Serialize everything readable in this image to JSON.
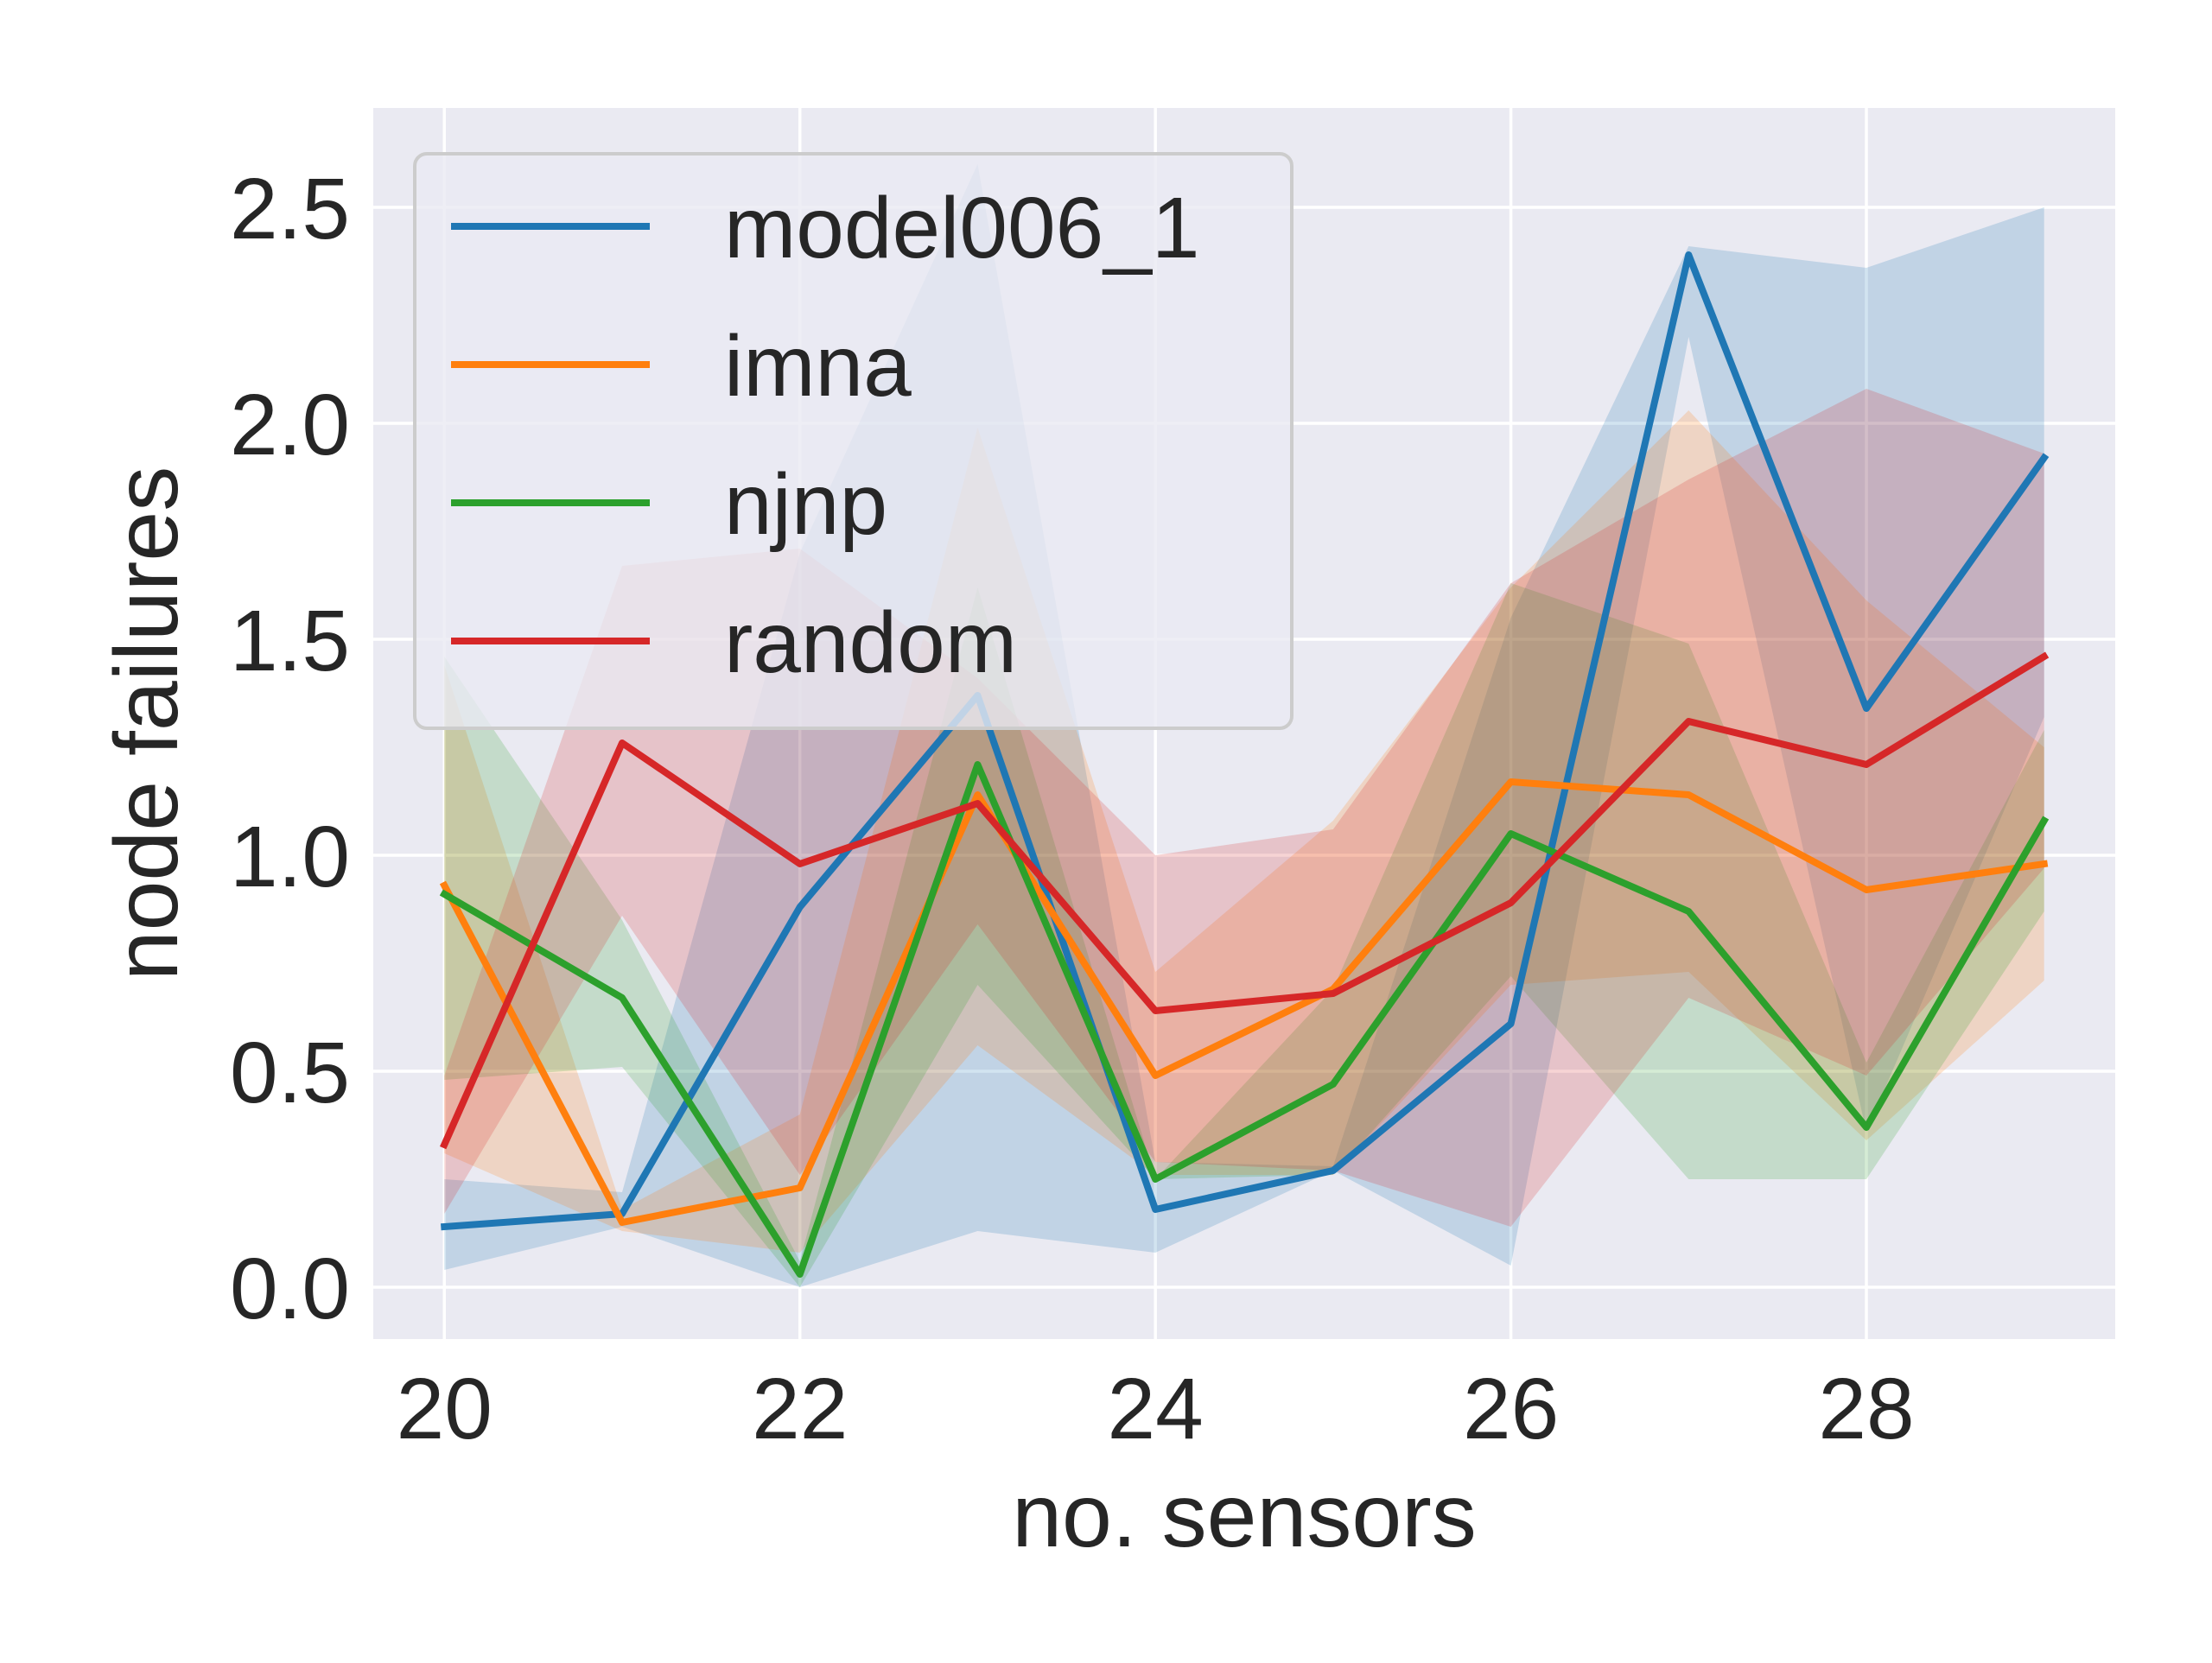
{
  "chart_data": {
    "type": "line",
    "title": "",
    "xlabel": "no. sensors",
    "ylabel": "node failures",
    "xlim": [
      19.6,
      29.4
    ],
    "ylim": [
      -0.12,
      2.73
    ],
    "xticks": [
      20,
      22,
      24,
      26,
      28
    ],
    "yticks": [
      0.0,
      0.5,
      1.0,
      1.5,
      2.0,
      2.5
    ],
    "xtick_labels": [
      "20",
      "22",
      "24",
      "26",
      "28"
    ],
    "ytick_labels": [
      "0.0",
      "0.5",
      "1.0",
      "1.5",
      "2.0",
      "2.5"
    ],
    "grid": true,
    "background": "#eaeaf2",
    "legend_position": "upper-left",
    "x": [
      20,
      21,
      22,
      23,
      24,
      25,
      26,
      27,
      28,
      29
    ],
    "series": [
      {
        "name": "model006_1",
        "color": "#1f77b4",
        "values": [
          0.14,
          0.17,
          0.88,
          1.37,
          0.18,
          0.27,
          0.61,
          2.39,
          1.34,
          1.92
        ],
        "lower": [
          0.04,
          0.14,
          0.0,
          0.13,
          0.08,
          0.27,
          0.05,
          2.2,
          0.36,
          1.32
        ],
        "upper": [
          0.25,
          0.22,
          1.7,
          2.6,
          0.29,
          0.28,
          1.55,
          2.41,
          2.36,
          2.5
        ]
      },
      {
        "name": "imna",
        "color": "#ff7f0e",
        "values": [
          0.93,
          0.15,
          0.23,
          1.14,
          0.49,
          0.69,
          1.17,
          1.14,
          0.92,
          0.98
        ],
        "lower": [
          0.31,
          0.13,
          0.08,
          0.56,
          0.26,
          0.26,
          0.7,
          0.73,
          0.34,
          0.71
        ],
        "upper": [
          1.44,
          0.18,
          0.4,
          1.99,
          0.73,
          1.08,
          1.62,
          2.03,
          1.59,
          1.25
        ]
      },
      {
        "name": "njnp",
        "color": "#2ca02c",
        "values": [
          0.91,
          0.67,
          0.03,
          1.21,
          0.25,
          0.47,
          1.05,
          0.87,
          0.37,
          1.08
        ],
        "lower": [
          0.48,
          0.51,
          0.0,
          0.7,
          0.25,
          0.26,
          0.72,
          0.25,
          0.25,
          0.87
        ],
        "upper": [
          1.46,
          0.85,
          0.06,
          1.62,
          0.25,
          0.69,
          1.63,
          1.49,
          0.52,
          1.29
        ]
      },
      {
        "name": "random",
        "color": "#d62728",
        "values": [
          0.33,
          1.26,
          0.98,
          1.12,
          0.64,
          0.68,
          0.89,
          1.31,
          1.21,
          1.46
        ],
        "lower": [
          0.17,
          0.86,
          0.26,
          0.84,
          0.29,
          0.27,
          0.14,
          0.67,
          0.49,
          0.97
        ],
        "upper": [
          0.49,
          1.67,
          1.71,
          1.41,
          1.0,
          1.06,
          1.63,
          1.87,
          2.08,
          1.93
        ]
      }
    ]
  }
}
